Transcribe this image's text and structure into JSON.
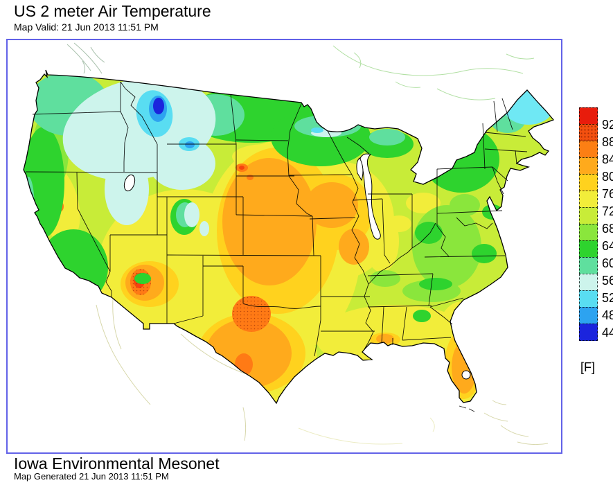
{
  "header": {
    "title": "US 2 meter Air Temperature",
    "valid": "Map Valid: 21 Jun 2013 11:51 PM"
  },
  "footer": {
    "org": "Iowa Environmental Mesonet",
    "generated": "Map Generated 21 Jun 2013 11:51 PM"
  },
  "legend": {
    "unit": "[F]",
    "boundaries": [
      "92",
      "88",
      "84",
      "80",
      "76",
      "72",
      "68",
      "64",
      "60",
      "56",
      "52",
      "48",
      "44"
    ],
    "blocks": [
      {
        "color": "#e81c0c",
        "stipple": false
      },
      {
        "color": "#f4500f",
        "stipple": true
      },
      {
        "color": "#fc7f14",
        "stipple": false
      },
      {
        "color": "#ffaa1c",
        "stipple": false
      },
      {
        "color": "#ffd21e",
        "stipple": false
      },
      {
        "color": "#f2ed3a",
        "stipple": false
      },
      {
        "color": "#c8ec38",
        "stipple": false
      },
      {
        "color": "#8ae63c",
        "stipple": false
      },
      {
        "color": "#2ed32e",
        "stipple": false
      },
      {
        "color": "#5fdf9e",
        "stipple": false
      },
      {
        "color": "#cdf4ec",
        "stipple": false
      },
      {
        "color": "#59ddf2",
        "stipple": false
      },
      {
        "color": "#2da3f0",
        "stipple": false
      },
      {
        "color": "#1b24dd",
        "stipple": false
      }
    ]
  },
  "map": {
    "frame_border_color": "#6262e8",
    "land_base_color": "#c8ec38"
  }
}
